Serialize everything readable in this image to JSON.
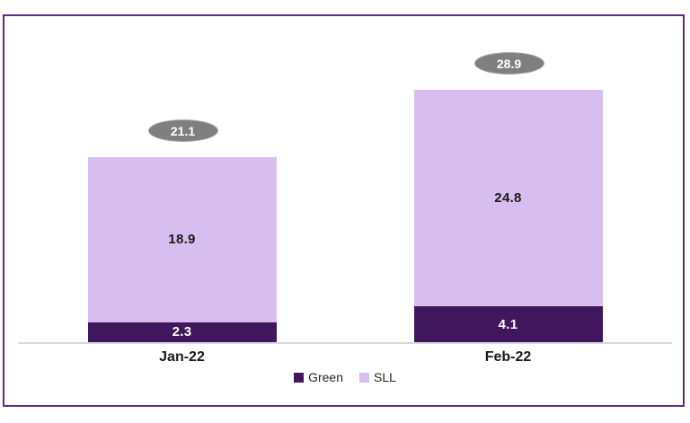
{
  "page": {
    "background_color": "#FFFFFF",
    "frame_border_color": "#5B2C87"
  },
  "chart_data": {
    "type": "bar",
    "stacked": true,
    "title": "",
    "xlabel": "",
    "ylabel": "",
    "grid": false,
    "axis_visible": "baseline-only",
    "ylim": [
      0,
      30
    ],
    "categories": [
      "Jan-22",
      "Feb-22"
    ],
    "series": [
      {
        "name": "Green",
        "color": "#40165C",
        "label_color": "#FFFFFF",
        "values": [
          2.3,
          4.1
        ]
      },
      {
        "name": "SLL",
        "color": "#D8BEEE",
        "label_color": "#1A1A1A",
        "values": [
          18.9,
          24.8
        ]
      }
    ],
    "totals": {
      "values": [
        21.1,
        28.9
      ],
      "badge_shape": "oval",
      "badge_fill": "#7F7F7F",
      "badge_border": "#A6A6A6",
      "text_color": "#FFFFFF"
    },
    "axis": {
      "baseline_color": "#D9D9D9",
      "category_label_color": "#1A1A1A"
    },
    "legend": {
      "position": "bottom-center",
      "text_color": "#262626"
    }
  }
}
